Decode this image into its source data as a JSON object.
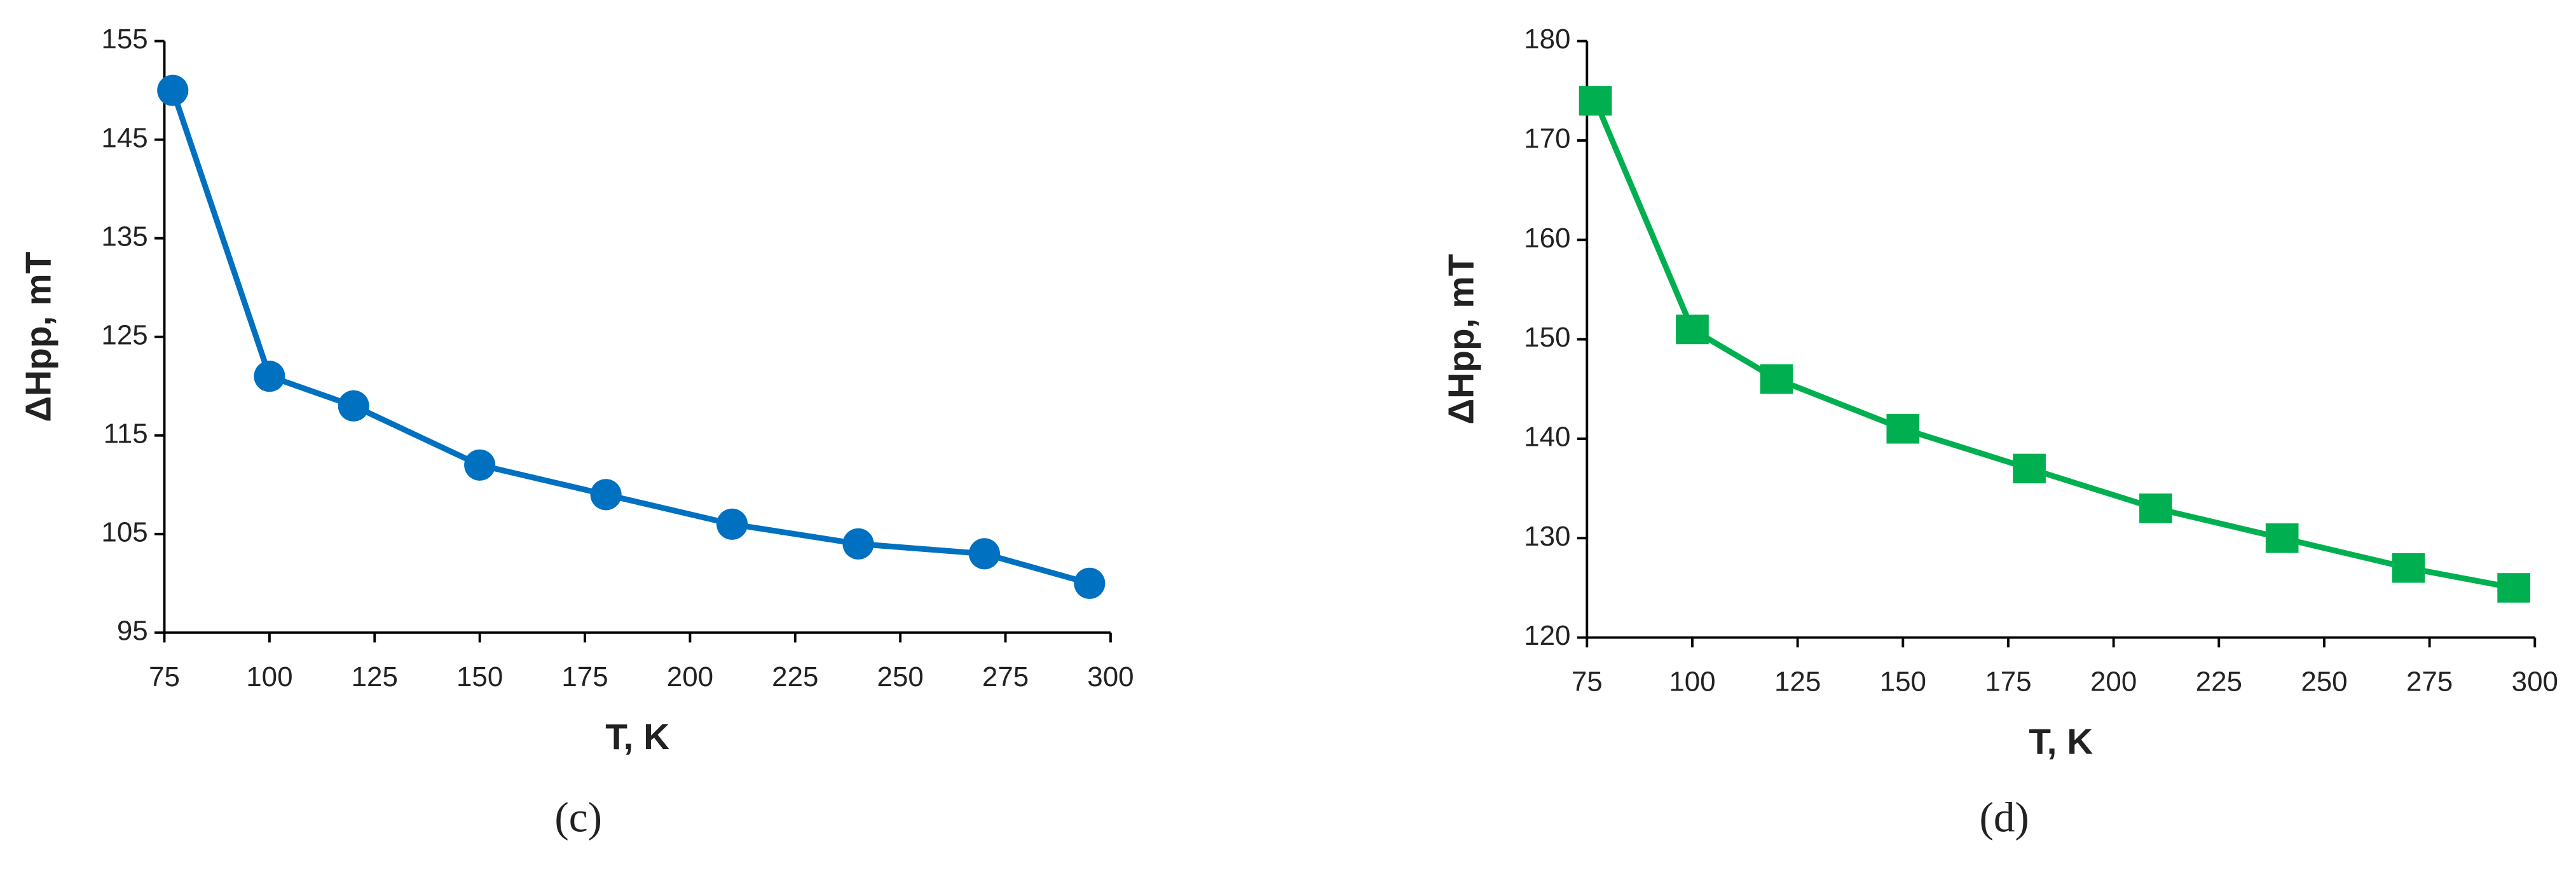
{
  "chart_data": [
    {
      "type": "line",
      "marker": "circle",
      "caption": "(c)",
      "x_label": "T, K",
      "y_label": "ΔHpp, mT",
      "x": [
        77,
        100,
        120,
        150,
        180,
        210,
        240,
        270,
        295
      ],
      "series": [
        {
          "color": "#0070c0",
          "values": [
            150,
            121,
            118,
            112,
            109,
            106,
            104,
            103,
            100
          ]
        }
      ],
      "xlim": [
        75,
        300
      ],
      "xticks": [
        75,
        100,
        125,
        150,
        175,
        200,
        225,
        250,
        275,
        300
      ],
      "ylim": [
        95,
        155
      ],
      "yticks": [
        95,
        105,
        115,
        125,
        135,
        145,
        155
      ],
      "grid": false
    },
    {
      "type": "line",
      "marker": "square",
      "caption": "(d)",
      "x_label": "T, K",
      "y_label": "ΔHpp, mT",
      "x": [
        77,
        100,
        120,
        150,
        180,
        210,
        240,
        270,
        295
      ],
      "series": [
        {
          "color": "#00b050",
          "values": [
            174,
            151,
            146,
            141,
            137,
            133,
            130,
            127,
            125
          ]
        }
      ],
      "xlim": [
        75,
        300
      ],
      "xticks": [
        75,
        100,
        125,
        150,
        175,
        200,
        225,
        250,
        275,
        300
      ],
      "ylim": [
        120,
        180
      ],
      "yticks": [
        120,
        130,
        140,
        150,
        160,
        170,
        180
      ],
      "grid": false
    }
  ]
}
